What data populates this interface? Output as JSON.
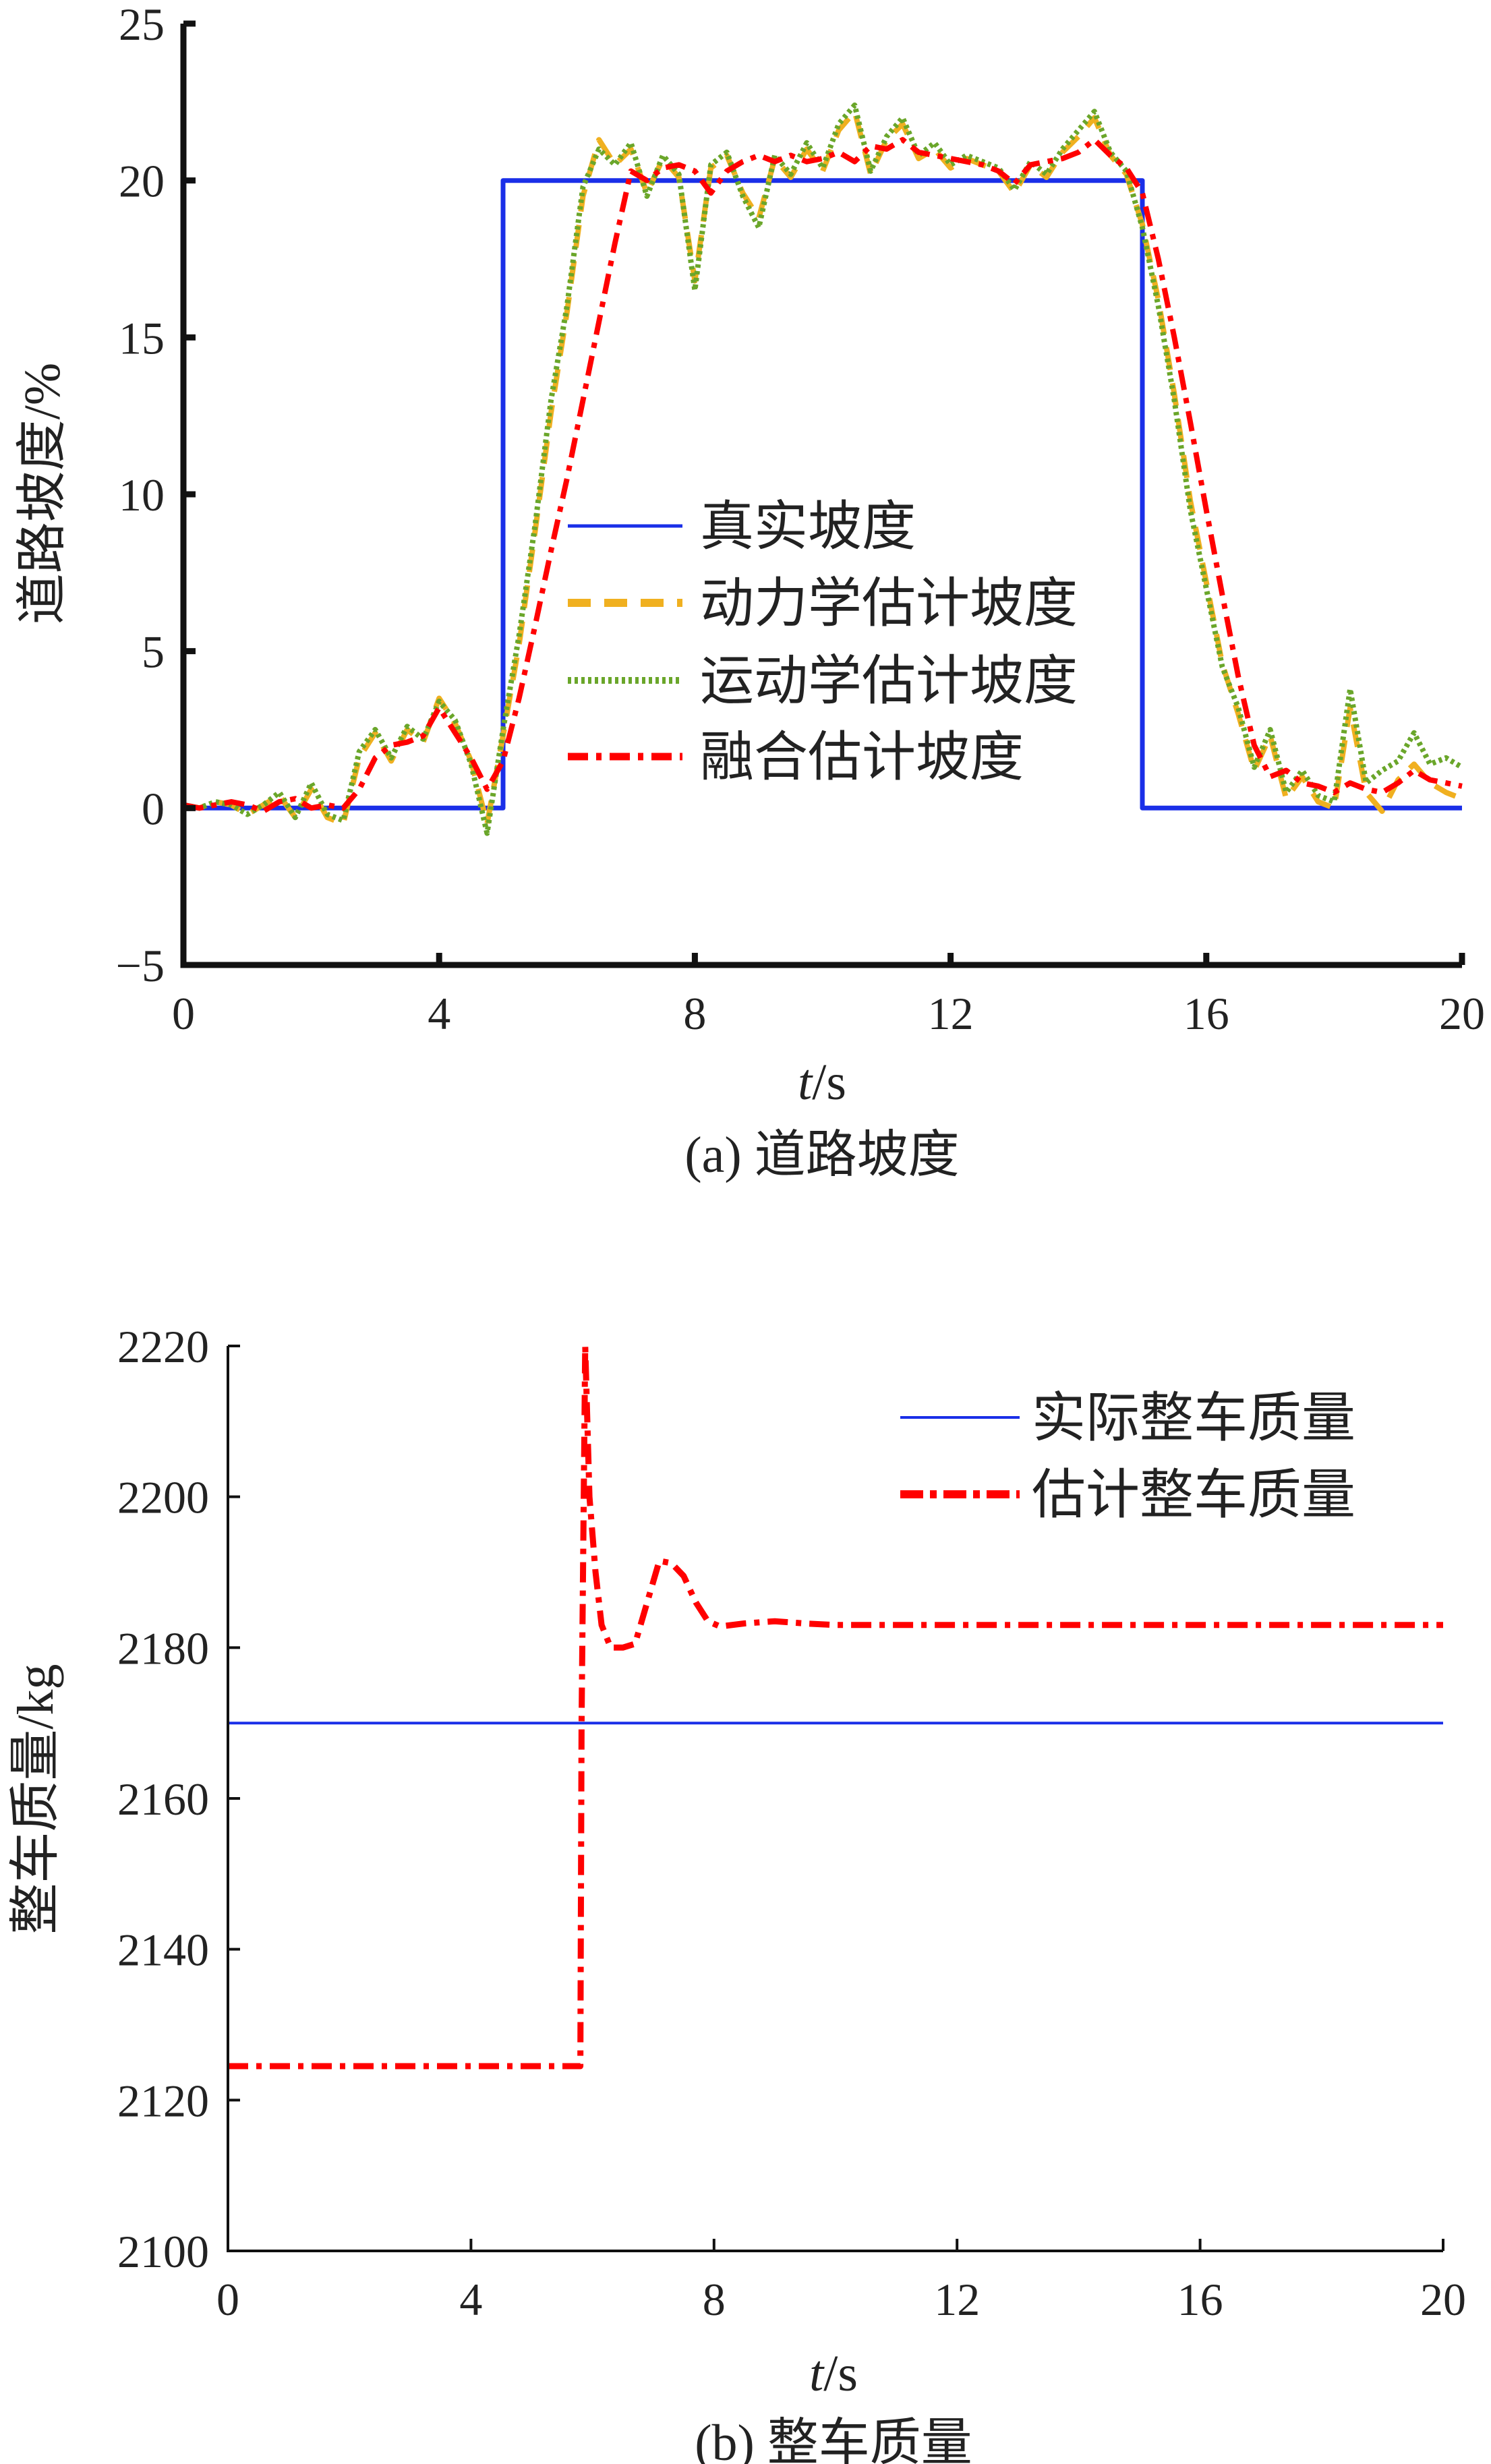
{
  "chart_data": [
    {
      "type": "line",
      "caption": "(a) 道路坡度",
      "xlabel_italic": "t",
      "xlabel_unit": "/s",
      "ylabel": "道路坡度/%",
      "xlim": [
        0,
        20
      ],
      "ylim": [
        -5,
        25
      ],
      "xticks": [
        0,
        4,
        8,
        12,
        16,
        20
      ],
      "yticks": [
        -5,
        0,
        5,
        10,
        15,
        20,
        25
      ],
      "ytick_labels": [
        "−5",
        "0",
        "5",
        "10",
        "15",
        "20",
        "25"
      ],
      "grid": false,
      "legend_position": "center",
      "series": [
        {
          "name": "真实坡度",
          "color": "#1a2fe8",
          "style": "solid",
          "x": [
            0,
            5,
            5,
            15,
            15,
            20
          ],
          "y": [
            0,
            0,
            20,
            20,
            0,
            0
          ]
        },
        {
          "name": "动力学估计坡度",
          "color": "#f0b020",
          "style": "dashed",
          "x_step": 0.25,
          "y": [
            0.1,
            0,
            0.2,
            0.1,
            -0.2,
            0.1,
            0.4,
            -0.3,
            0.6,
            -0.3,
            -0.5,
            1.6,
            2.4,
            1.5,
            2.5,
            2.1,
            3.5,
            2.7,
            1.5,
            -0.5,
            2.3,
            5.2,
            8.8,
            12.6,
            15.8,
            19.5,
            21.3,
            20.5,
            21.0,
            19.6,
            20.7,
            20.1,
            16.8,
            20.4,
            20.8,
            19.6,
            18.8,
            20.7,
            20.1,
            21.0,
            20.3,
            21.6,
            22.2,
            20.2,
            21.3,
            21.8,
            20.7,
            21.0,
            20.4,
            20.7,
            20.5,
            20.3,
            19.6,
            20.5,
            20.1,
            20.9,
            21.4,
            22.0,
            20.8,
            20.2,
            18.6,
            16.2,
            13.2,
            9.8,
            7.2,
            4.6,
            3.0,
            1.2,
            2.3,
            0.3,
            1.0,
            0.2,
            0,
            3.2,
            0.5,
            -0.1,
            0.9,
            1.4,
            0.8,
            0.5,
            0.3
          ]
        },
        {
          "name": "运动学估计坡度",
          "color": "#6aa62a",
          "style": "dotted",
          "x_step": 0.25,
          "y": [
            0.1,
            0,
            0.2,
            0.1,
            -0.2,
            0.1,
            0.5,
            -0.3,
            0.8,
            -0.2,
            -0.4,
            1.8,
            2.5,
            1.6,
            2.6,
            2.2,
            3.4,
            2.8,
            1.4,
            -0.8,
            2.5,
            5.5,
            9,
            13,
            16,
            19.8,
            21,
            20.5,
            21.2,
            19.5,
            20.8,
            20.2,
            16.5,
            20.5,
            20.9,
            19.5,
            18.5,
            20.8,
            20.2,
            21.2,
            20.4,
            21.8,
            22.4,
            20.3,
            21.4,
            22.0,
            20.8,
            21.2,
            20.5,
            20.8,
            20.6,
            20.4,
            19.7,
            20.6,
            20.2,
            21.0,
            21.6,
            22.2,
            20.9,
            20.3,
            18.5,
            16,
            13,
            9.5,
            7,
            4.5,
            3.2,
            1.3,
            2.5,
            0.5,
            1.2,
            0.4,
            0.2,
            3.8,
            0.8,
            1.2,
            1.5,
            2.4,
            1.4,
            1.6,
            1.3
          ]
        },
        {
          "name": "融合估计坡度",
          "color": "#ff0000",
          "style": "dashdot",
          "x_step": 0.25,
          "y": [
            0.1,
            0,
            0.1,
            0.2,
            0.1,
            -0.1,
            0.2,
            0.3,
            0,
            0.1,
            0,
            0.6,
            1.6,
            2.0,
            2.1,
            2.3,
            3.2,
            2.4,
            1.6,
            0.6,
            1.5,
            3.5,
            5.8,
            8.2,
            10.5,
            13,
            15.5,
            18,
            20.3,
            20,
            20.4,
            20.5,
            20.3,
            19.6,
            20.3,
            20.6,
            20.8,
            20.6,
            20.8,
            20.6,
            20.7,
            20.9,
            20.6,
            21.1,
            21.0,
            21.3,
            20.9,
            20.8,
            20.7,
            20.6,
            20.5,
            20.3,
            19.9,
            20.5,
            20.6,
            20.7,
            20.9,
            21.3,
            20.8,
            20.4,
            19.6,
            17.5,
            15,
            12.3,
            9.5,
            6.8,
            4.2,
            2,
            1,
            1.2,
            0.8,
            0.7,
            0.5,
            0.8,
            0.6,
            0.5,
            0.8,
            1.2,
            0.9,
            0.8,
            0.7
          ]
        }
      ]
    },
    {
      "type": "line",
      "caption": "(b) 整车质量",
      "xlabel_italic": "t",
      "xlabel_unit": "/s",
      "ylabel": "整车质量/kg",
      "xlim": [
        0,
        20
      ],
      "ylim": [
        2100,
        2220
      ],
      "xticks": [
        0,
        4,
        8,
        12,
        16,
        20
      ],
      "yticks": [
        2100,
        2120,
        2140,
        2160,
        2180,
        2200,
        2220
      ],
      "ytick_labels": [
        "2100",
        "2120",
        "2140",
        "2160",
        "2180",
        "2200",
        "2220"
      ],
      "grid": false,
      "legend_position": "top-right",
      "series": [
        {
          "name": "实际整车质量",
          "color": "#1a2fe8",
          "style": "solid",
          "x": [
            0,
            20
          ],
          "y": [
            2170,
            2170
          ]
        },
        {
          "name": "估计整车质量",
          "color": "#ff0000",
          "style": "dashdot",
          "x": [
            0,
            5.8,
            5.82,
            5.88,
            5.95,
            6.05,
            6.15,
            6.3,
            6.5,
            6.7,
            6.9,
            7.1,
            7.3,
            7.5,
            7.7,
            7.9,
            8.1,
            8.5,
            9.0,
            9.5,
            10,
            20
          ],
          "y": [
            2124.5,
            2124.5,
            2170,
            2220,
            2200,
            2190,
            2183,
            2180,
            2180,
            2180.5,
            2186,
            2191.5,
            2191.2,
            2189.5,
            2186,
            2183.5,
            2182.8,
            2183.2,
            2183.5,
            2183.2,
            2183,
            2183
          ]
        }
      ]
    }
  ]
}
